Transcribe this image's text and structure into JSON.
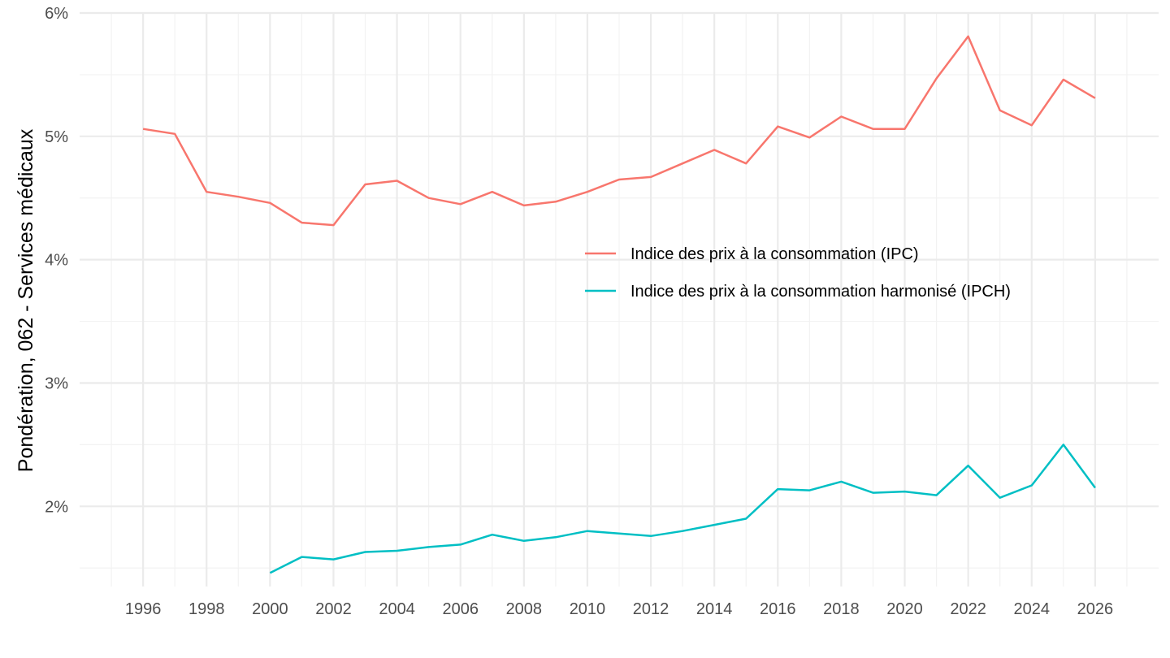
{
  "chart_data": {
    "type": "line",
    "title": "",
    "xlabel": "",
    "ylabel": "Pondération, 062 - Services médicaux",
    "xlim": [
      1994,
      2028
    ],
    "ylim": [
      1.35,
      6.0
    ],
    "y_major_ticks": [
      {
        "value": 2,
        "label": "2%"
      },
      {
        "value": 3,
        "label": "3%"
      },
      {
        "value": 4,
        "label": "4%"
      },
      {
        "value": 5,
        "label": "5%"
      },
      {
        "value": 6,
        "label": "6%"
      }
    ],
    "y_minor_ticks": [
      1.5,
      2.5,
      3.5,
      4.5,
      5.5
    ],
    "x_major_ticks": [
      {
        "value": 1996,
        "label": "1996"
      },
      {
        "value": 1998,
        "label": "1998"
      },
      {
        "value": 2000,
        "label": "2000"
      },
      {
        "value": 2002,
        "label": "2002"
      },
      {
        "value": 2004,
        "label": "2004"
      },
      {
        "value": 2006,
        "label": "2006"
      },
      {
        "value": 2008,
        "label": "2008"
      },
      {
        "value": 2010,
        "label": "2010"
      },
      {
        "value": 2012,
        "label": "2012"
      },
      {
        "value": 2014,
        "label": "2014"
      },
      {
        "value": 2016,
        "label": "2016"
      },
      {
        "value": 2018,
        "label": "2018"
      },
      {
        "value": 2020,
        "label": "2020"
      },
      {
        "value": 2022,
        "label": "2022"
      },
      {
        "value": 2024,
        "label": "2024"
      },
      {
        "value": 2026,
        "label": "2026"
      }
    ],
    "x_minor_ticks": [
      1995,
      1997,
      1999,
      2001,
      2003,
      2005,
      2007,
      2009,
      2011,
      2013,
      2015,
      2017,
      2019,
      2021,
      2023,
      2025,
      2027
    ],
    "grid": true,
    "legend_position": "inside-right",
    "series": [
      {
        "name": "Indice des prix à la consommation (IPC)",
        "color": "#f8766d",
        "x": [
          1996,
          1997,
          1998,
          1999,
          2000,
          2001,
          2002,
          2003,
          2004,
          2005,
          2006,
          2007,
          2008,
          2009,
          2010,
          2011,
          2012,
          2013,
          2014,
          2015,
          2016,
          2017,
          2018,
          2019,
          2020,
          2021,
          2022,
          2023,
          2024,
          2025,
          2026
        ],
        "values": [
          5.06,
          5.02,
          4.55,
          4.51,
          4.46,
          4.3,
          4.28,
          4.61,
          4.64,
          4.5,
          4.45,
          4.55,
          4.44,
          4.47,
          4.55,
          4.65,
          4.67,
          4.78,
          4.89,
          4.78,
          5.08,
          4.99,
          5.16,
          5.06,
          5.06,
          5.47,
          5.81,
          5.21,
          5.09,
          5.46,
          5.31
        ]
      },
      {
        "name": "Indice des prix à la consommation harmonisé (IPCH)",
        "color": "#00bfc4",
        "x": [
          2000,
          2001,
          2002,
          2003,
          2004,
          2005,
          2006,
          2007,
          2008,
          2009,
          2010,
          2011,
          2012,
          2013,
          2014,
          2015,
          2016,
          2017,
          2018,
          2019,
          2020,
          2021,
          2022,
          2023,
          2024,
          2025,
          2026
        ],
        "values": [
          1.46,
          1.59,
          1.57,
          1.63,
          1.64,
          1.67,
          1.69,
          1.77,
          1.72,
          1.75,
          1.8,
          1.78,
          1.76,
          1.8,
          1.85,
          1.9,
          2.14,
          2.13,
          2.2,
          2.11,
          2.12,
          2.09,
          2.33,
          2.07,
          2.17,
          2.5,
          2.15
        ]
      }
    ]
  }
}
